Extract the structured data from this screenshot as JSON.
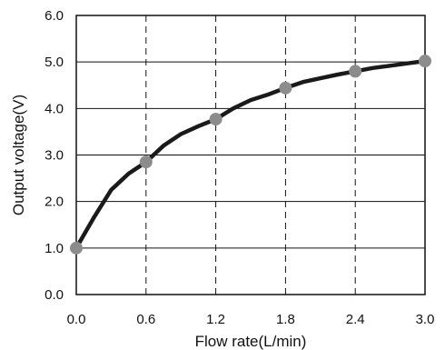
{
  "chart_data": {
    "type": "line",
    "xlabel": "Flow rate(L/min)",
    "ylabel": "Output voltage(V)",
    "xlim": [
      0.0,
      3.0
    ],
    "ylim": [
      0.0,
      6.0
    ],
    "x_ticks": [
      "0.0",
      "0.6",
      "1.2",
      "1.8",
      "2.4",
      "3.0"
    ],
    "y_ticks": [
      "0.0",
      "1.0",
      "2.0",
      "3.0",
      "4.0",
      "5.0",
      "6.0"
    ],
    "grid": "horizontal solid, vertical dashed",
    "line_color": "#1a1a1a",
    "marker_color": "#8c8c8c",
    "curve": {
      "x": [
        0.0,
        0.15,
        0.3,
        0.45,
        0.6,
        0.75,
        0.9,
        1.05,
        1.2,
        1.35,
        1.5,
        1.65,
        1.8,
        1.95,
        2.1,
        2.25,
        2.4,
        2.55,
        2.7,
        2.85,
        3.0
      ],
      "y": [
        1.0,
        1.65,
        2.25,
        2.6,
        2.85,
        3.2,
        3.45,
        3.62,
        3.77,
        4.0,
        4.18,
        4.3,
        4.44,
        4.57,
        4.65,
        4.73,
        4.8,
        4.87,
        4.92,
        4.97,
        5.02
      ]
    },
    "points": {
      "x": [
        0.0,
        0.6,
        1.2,
        1.8,
        2.4,
        3.0
      ],
      "y": [
        1.0,
        2.85,
        3.77,
        4.44,
        4.8,
        5.02
      ]
    }
  }
}
